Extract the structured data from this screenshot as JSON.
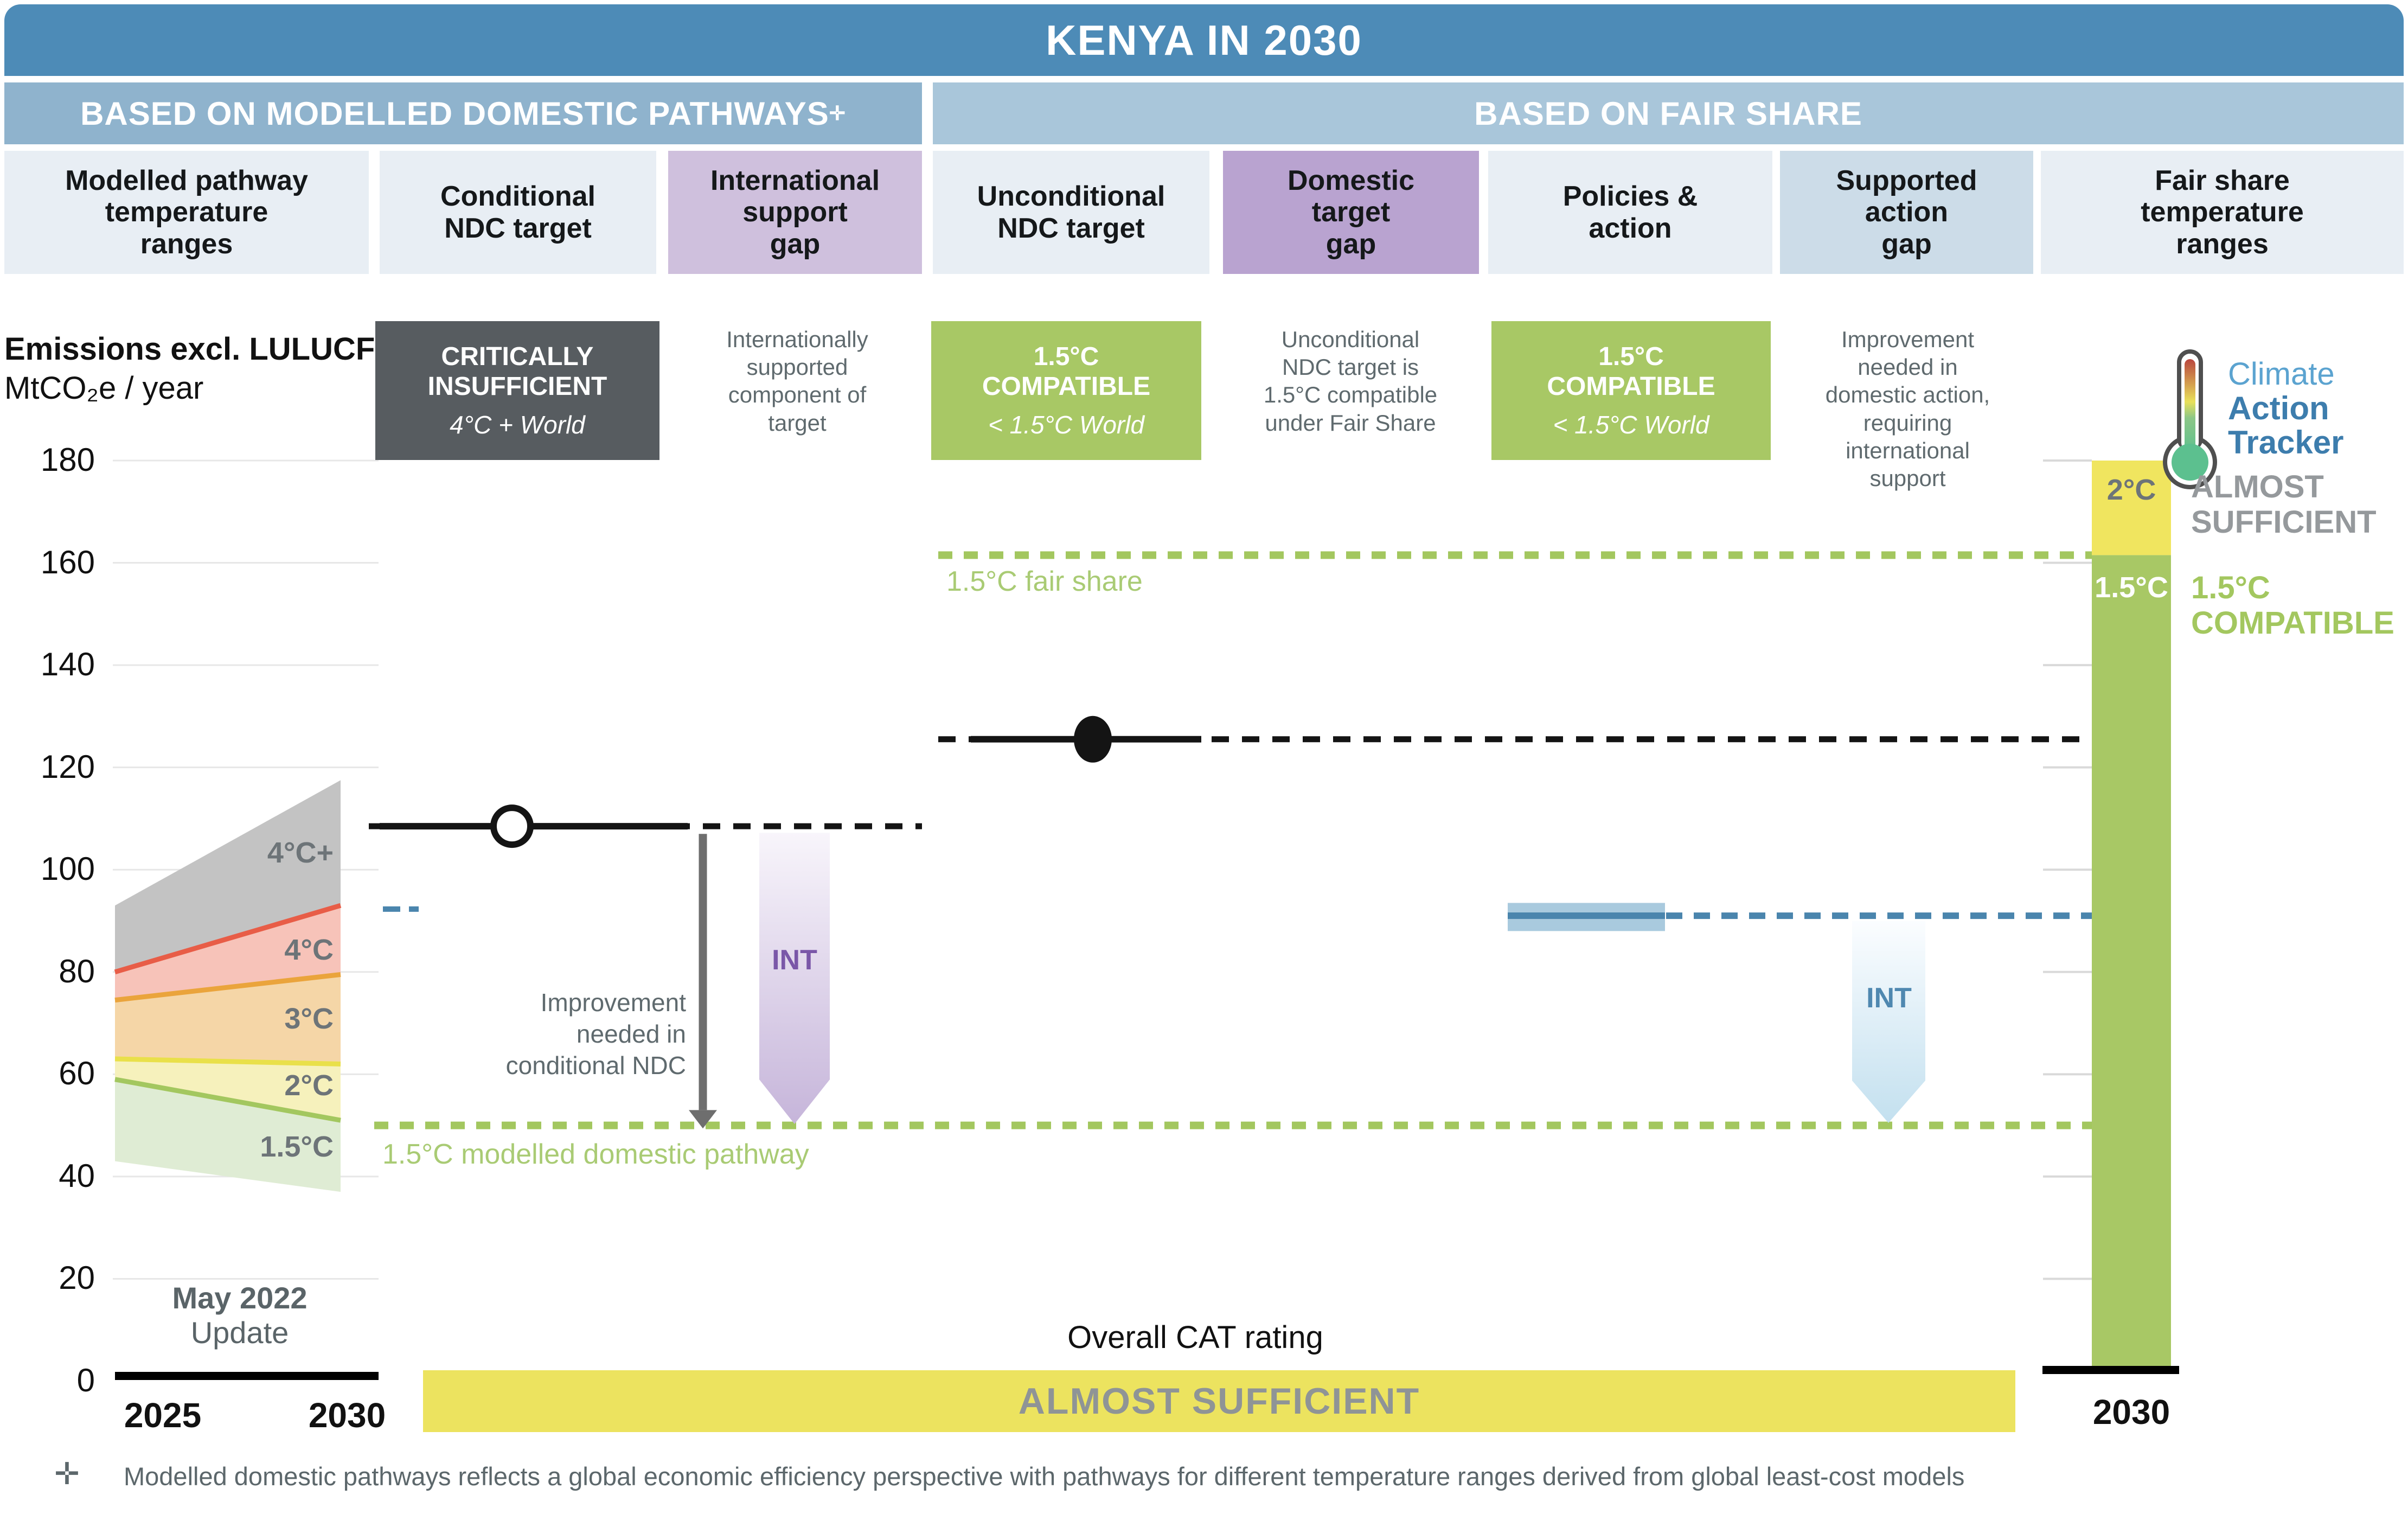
{
  "title": "KENYA IN 2030",
  "sections": {
    "left": "BASED ON MODELLED DOMESTIC PATHWAYS",
    "left_sup": "✛",
    "right": "BASED ON FAIR SHARE"
  },
  "columns": [
    {
      "label": "Modelled pathway\ntemperature\nranges"
    },
    {
      "label": "Conditional\nNDC target"
    },
    {
      "label": "International\nsupport\ngap"
    },
    {
      "label": "Unconditional\nNDC target"
    },
    {
      "label": "Domestic\ntarget\ngap"
    },
    {
      "label": "Policies &\naction"
    },
    {
      "label": "Supported\naction\ngap"
    },
    {
      "label": "Fair share\ntemperature\nranges"
    }
  ],
  "badges": {
    "conditional": {
      "line1": "CRITICALLY",
      "line2": "INSUFFICIENT",
      "sub": "4°C + World"
    },
    "international_gap_note": "Internationally\nsupported\ncomponent of\ntarget",
    "unconditional": {
      "line1": "1.5°C",
      "line2": "COMPATIBLE",
      "sub": "< 1.5°C World"
    },
    "domestic_gap_note": "Unconditional\nNDC target is\n1.5°C compatible\nunder Fair Share",
    "policies": {
      "line1": "1.5°C",
      "line2": "COMPATIBLE",
      "sub": "< 1.5°C World"
    },
    "supported_gap_note": "Improvement\nneeded in\ndomestic action,\nrequiring\ninternational\nsupport"
  },
  "logo": {
    "line1": "Climate",
    "line2": "Action",
    "line3": "Tracker"
  },
  "axis": {
    "title": "Emissions excl. LULUCF",
    "unit": "MtCO₂e / year"
  },
  "annotations": {
    "improvement_conditional": "Improvement\nneeded in\nconditional NDC",
    "int_label_international": "INT",
    "int_label_supported": "INT",
    "fair_share_line": "1.5°C fair share",
    "domestic_line": "1.5°C modelled domestic pathway"
  },
  "rating_scale": {
    "band2": "2°C",
    "band15": "1.5°C",
    "almost": "ALMOST\nSUFFICIENT",
    "compatible": "1.5°C\nCOMPATIBLE"
  },
  "footer": {
    "overall": "Overall CAT rating",
    "banner": "ALMOST SUFFICIENT",
    "update_line1": "May 2022",
    "update_line2": "Update",
    "x2025": "2025",
    "x2030": "2030",
    "x2030_right": "2030",
    "footnote_sym": "✛",
    "footnote": "Modelled domestic pathways reflects a global economic efficiency perspective with pathways for different temperature ranges derived from global least-cost models"
  },
  "colors": {
    "title_bar": "#4d8bb7",
    "section_left": "#8fb3cd",
    "section_right": "#a9c6da",
    "header_light": "#e8eef4",
    "purple_light": "#cfc0dd",
    "purple_dark": "#b9a3d0",
    "steel_light": "#ccdce8",
    "badge_dark": "#575c60",
    "green": "#a8c865",
    "yellow_bar": "#f0e55f",
    "yellow_banner": "#ece35f",
    "blue": "#4a85ad",
    "blue_light": "#a9cade",
    "purple_int_text": "#7a57a8",
    "gray_rating_text": "#95999c",
    "note_text": "#5f6a6e",
    "black_line": "#141414",
    "green_line": "#a3c75f"
  },
  "chart_data": {
    "type": "area",
    "title": "Kenya emissions pathways and 2030 targets (Climate Action Tracker)",
    "ylabel": "Emissions excl. LULUCF, MtCO2e / year",
    "ylim": [
      0,
      180
    ],
    "y_ticks": [
      0,
      20,
      40,
      60,
      80,
      100,
      120,
      140,
      160,
      180
    ],
    "x_years": [
      "2025",
      "2030"
    ],
    "grid": true,
    "fan_bands": [
      {
        "name": "4°C+",
        "fill": "#c3c3c3",
        "line_color": null,
        "top": [
          93,
          117.5
        ],
        "bottom": [
          80,
          93
        ],
        "label_v": 103
      },
      {
        "name": "4°C",
        "fill": "#f7c3b9",
        "line_color": "#e85d47",
        "top": [
          80,
          93
        ],
        "bottom": [
          74.5,
          79.5
        ],
        "label_v": 84
      },
      {
        "name": "3°C",
        "fill": "#f5d6a7",
        "line_color": "#eaa43c",
        "top": [
          74.5,
          79.5
        ],
        "bottom": [
          63,
          62
        ],
        "label_v": 70.5
      },
      {
        "name": "2°C",
        "fill": "#f6f1bc",
        "line_color": "#e9e04a",
        "top": [
          63,
          62
        ],
        "bottom": [
          59,
          51
        ],
        "label_v": 57.5
      },
      {
        "name": "1.5°C",
        "fill": "#dfecd4",
        "line_color": "#a3c75f",
        "top": [
          59,
          51
        ],
        "bottom": [
          43,
          37
        ],
        "label_v": 45.5
      }
    ],
    "levels": {
      "conditional_ndc": 108.5,
      "unconditional_ndc": 125.5,
      "fair_share_1_5": 161.5,
      "modelled_domestic_1_5": 50,
      "policies_action": 91,
      "policies_action_band": [
        88,
        93.5
      ]
    },
    "rating_bar": {
      "top": 180,
      "boundary_1_5_fair_share": 161.5,
      "bottom": 0,
      "upper_rating": "ALMOST SUFFICIENT (2°C)",
      "lower_rating": "1.5°C COMPATIBLE"
    }
  }
}
